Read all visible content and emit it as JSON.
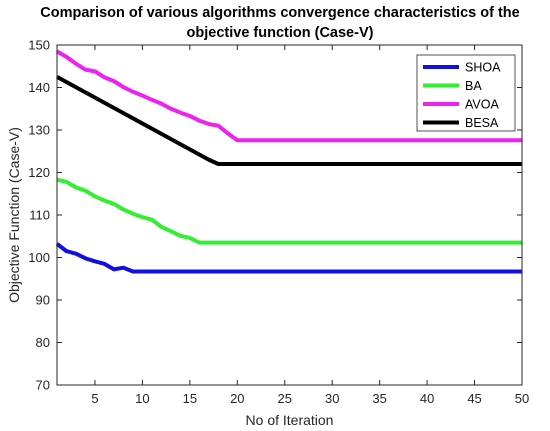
{
  "chart_data": {
    "type": "line",
    "title_line1": "Comparison of various algorithms convergence characteristics of the",
    "title_line2": "objective function (Case-V)",
    "xlabel": "No of Iteration",
    "ylabel": "Objective Function (Case-V)",
    "xlim": [
      1,
      50
    ],
    "ylim": [
      70,
      150
    ],
    "xticks": [
      5,
      10,
      15,
      20,
      25,
      30,
      35,
      40,
      45,
      50
    ],
    "yticks": [
      70,
      80,
      90,
      100,
      110,
      120,
      130,
      140,
      150
    ],
    "grid": false,
    "legend_position": "top-right",
    "series": [
      {
        "name": "SHOA",
        "color": "#1010e0",
        "x": [
          1,
          2,
          3,
          4,
          5,
          6,
          7,
          8,
          9,
          10,
          50
        ],
        "y": [
          103.2,
          101.5,
          100.9,
          99.8,
          99.1,
          98.5,
          97.2,
          97.6,
          96.7,
          96.7,
          96.7
        ]
      },
      {
        "name": "BA",
        "color": "#33ee33",
        "x": [
          1,
          2,
          3,
          4,
          5,
          6,
          7,
          8,
          9,
          10,
          11,
          12,
          13,
          14,
          15,
          16,
          50
        ],
        "y": [
          118.3,
          117.8,
          116.5,
          115.7,
          114.4,
          113.4,
          112.6,
          111.3,
          110.3,
          109.5,
          108.9,
          107.2,
          106.2,
          105.1,
          104.6,
          103.5,
          103.5
        ]
      },
      {
        "name": "AVOA",
        "color": "#ee22ee",
        "x": [
          1,
          2,
          3,
          4,
          5,
          6,
          7,
          8,
          9,
          10,
          11,
          12,
          13,
          14,
          15,
          16,
          17,
          18,
          19,
          20,
          50
        ],
        "y": [
          148.5,
          147.2,
          145.6,
          144.2,
          143.8,
          142.4,
          141.5,
          140.1,
          139.0,
          138.1,
          137.1,
          136.2,
          135.0,
          134.1,
          133.3,
          132.2,
          131.4,
          131.0,
          129.2,
          127.6,
          127.6
        ]
      },
      {
        "name": "BESA",
        "color": "#000000",
        "x": [
          1,
          17,
          18,
          50
        ],
        "y": [
          142.5,
          123.0,
          122.0,
          122.0
        ]
      }
    ]
  }
}
